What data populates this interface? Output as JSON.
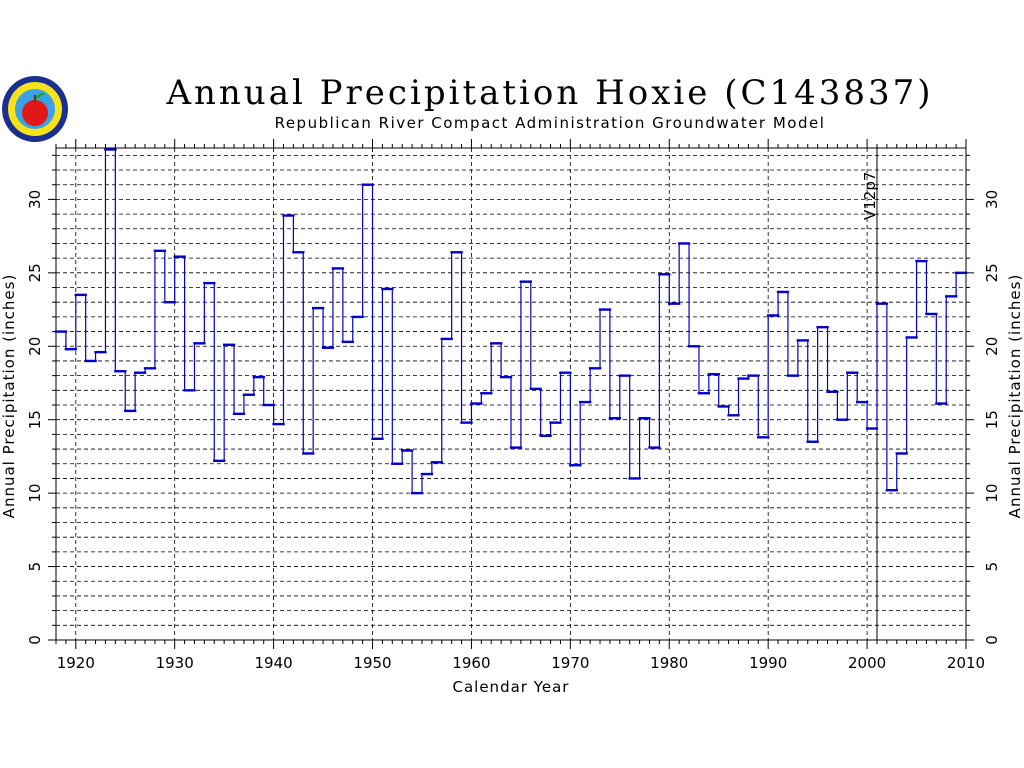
{
  "chart_data": {
    "type": "line",
    "style": "step",
    "title": "Annual Precipitation Hoxie (C143837)",
    "subtitle": "Republican River Compact Administration Groundwater Model",
    "xlabel": "Calendar Year",
    "ylabel": "Annual Precipitation (inches)",
    "ylabel_right": "Annual Precipitation (inches)",
    "xlim": [
      1918,
      2010
    ],
    "ylim": [
      0,
      33.5
    ],
    "x_ticks": [
      "1920",
      "1930",
      "1940",
      "1950",
      "1960",
      "1970",
      "1980",
      "1990",
      "2000",
      "2010"
    ],
    "y_ticks": [
      "0",
      "5",
      "10",
      "15",
      "20",
      "25",
      "30"
    ],
    "grid": true,
    "annotation": {
      "label": "V12p7",
      "x": 2001
    },
    "series": [
      {
        "color": "#0000c8",
        "x": [
          1918,
          1919,
          1920,
          1921,
          1922,
          1923,
          1924,
          1925,
          1926,
          1927,
          1928,
          1929,
          1930,
          1931,
          1932,
          1933,
          1934,
          1935,
          1936,
          1937,
          1938,
          1939,
          1940,
          1941,
          1942,
          1943,
          1944,
          1945,
          1946,
          1947,
          1948,
          1949,
          1950,
          1951,
          1952,
          1953,
          1954,
          1955,
          1956,
          1957,
          1958,
          1959,
          1960,
          1961,
          1962,
          1963,
          1964,
          1965,
          1966,
          1967,
          1968,
          1969,
          1970,
          1971,
          1972,
          1973,
          1974,
          1975,
          1976,
          1977,
          1978,
          1979,
          1980,
          1981,
          1982,
          1983,
          1984,
          1985,
          1986,
          1987,
          1988,
          1989,
          1990,
          1991,
          1992,
          1993,
          1994,
          1995,
          1996,
          1997,
          1998,
          1999,
          2000,
          2001,
          2002,
          2003,
          2004,
          2005,
          2006,
          2007,
          2008,
          2009
        ],
        "values": [
          21.0,
          19.8,
          23.5,
          19.0,
          19.6,
          33.4,
          18.3,
          15.6,
          18.2,
          18.5,
          26.5,
          23.0,
          26.1,
          17.0,
          20.2,
          24.3,
          12.2,
          20.1,
          15.4,
          16.7,
          17.9,
          16.0,
          14.7,
          28.9,
          26.4,
          12.7,
          22.6,
          19.9,
          25.3,
          20.3,
          22.0,
          31.0,
          13.7,
          23.9,
          12.0,
          12.9,
          10.0,
          11.3,
          12.1,
          20.5,
          26.4,
          14.8,
          16.1,
          16.8,
          20.2,
          17.9,
          13.1,
          24.4,
          17.1,
          13.9,
          14.8,
          18.2,
          11.9,
          16.2,
          18.5,
          22.5,
          15.1,
          18.0,
          11.0,
          15.1,
          13.1,
          24.9,
          22.9,
          27.0,
          20.0,
          16.8,
          18.1,
          15.9,
          15.3,
          17.8,
          18.0,
          13.8,
          22.1,
          23.7,
          18.0,
          20.4,
          13.5,
          21.3,
          16.9,
          15.0,
          18.2,
          16.2,
          14.4,
          22.9,
          10.2,
          12.7,
          20.6,
          25.8,
          22.2,
          16.1,
          23.4,
          25.0
        ]
      }
    ]
  }
}
